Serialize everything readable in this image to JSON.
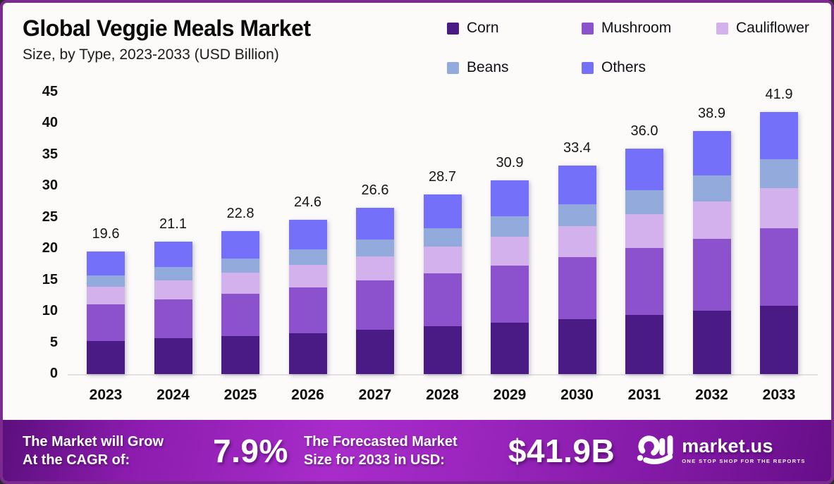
{
  "header": {
    "title": "Global Veggie Meals Market",
    "subtitle": "Size, by Type, 2023-2033 (USD Billion)"
  },
  "chart_data": {
    "type": "bar",
    "stacked": true,
    "title": "Global Veggie Meals Market Size, by Type, 2023-2033 (USD Billion)",
    "categories": [
      "2023",
      "2024",
      "2025",
      "2026",
      "2027",
      "2028",
      "2029",
      "2030",
      "2031",
      "2032",
      "2033"
    ],
    "series": [
      {
        "name": "Corn",
        "color": "#4a1a85",
        "values": [
          5.3,
          5.7,
          6.12,
          6.58,
          7.07,
          7.6,
          8.17,
          8.78,
          9.44,
          10.14,
          10.9
        ]
      },
      {
        "name": "Mushroom",
        "color": "#8c52cd",
        "values": [
          5.8,
          6.26,
          6.75,
          7.29,
          7.86,
          8.48,
          9.15,
          9.87,
          10.65,
          11.49,
          12.4
        ]
      },
      {
        "name": "Cauliflower",
        "color": "#d3b1ec",
        "values": [
          2.8,
          3.04,
          3.3,
          3.59,
          3.9,
          4.23,
          4.6,
          4.99,
          5.42,
          5.89,
          6.4
        ]
      },
      {
        "name": "Beans",
        "color": "#93aadc",
        "values": [
          1.9,
          2.08,
          2.27,
          2.48,
          2.71,
          2.96,
          3.23,
          3.53,
          3.86,
          4.21,
          4.6
        ]
      },
      {
        "name": "Others",
        "color": "#7470fa",
        "values": [
          3.8,
          4.07,
          4.36,
          4.68,
          5.01,
          5.37,
          5.76,
          6.17,
          6.62,
          7.09,
          7.6
        ]
      }
    ],
    "total_labels": [
      "19.6",
      "21.1",
      "22.8",
      "24.6",
      "26.6",
      "28.7",
      "30.9",
      "33.4",
      "36.0",
      "38.9",
      "41.9"
    ],
    "yticks": [
      0,
      5,
      10,
      15,
      20,
      25,
      30,
      35,
      40,
      45
    ],
    "ylim": [
      0,
      45
    ],
    "xlabel": "",
    "ylabel": "",
    "grid": false,
    "legend_position": "top-right"
  },
  "banner": {
    "cagr_label_line1": "The Market will Grow",
    "cagr_label_line2": "At the CAGR of:",
    "cagr_value": "7.9%",
    "forecast_label_line1": "The Forecasted Market",
    "forecast_label_line2": "Size for 2033 in USD:",
    "forecast_value": "$41.9B",
    "logo_name": "market.us",
    "logo_tagline": "ONE STOP SHOP FOR THE REPORTS"
  },
  "colors": {
    "frame_border": "#7c2a90",
    "card_background": "#fcfbfa",
    "banner_center": "#a82cca",
    "banner_edge": "#5c0f7d"
  }
}
